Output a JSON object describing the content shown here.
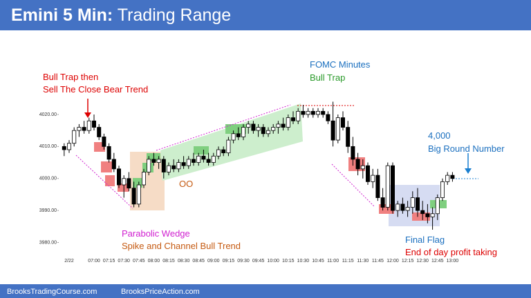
{
  "header": {
    "title_prefix": "Emini 5 Min:",
    "title": "Trading Range"
  },
  "footer": {
    "left": "BrooksTradingCourse.com",
    "right": "BrooksPriceAction.com"
  },
  "chart_data": {
    "type": "candlestick",
    "up_color": "#ffffff",
    "down_color": "#000000",
    "annotations": [
      "Bull Trap then",
      "Sell The Close Bear Trend",
      "FOMC Minutes",
      "Bull Trap",
      "4,000",
      "Big Round Number",
      "OO",
      "Parabolic Wedge",
      "Spike and Channel Bull Trend",
      "Final Flag",
      "End of day profit taking"
    ],
    "ylim": [
      3973,
      4045
    ],
    "yticks": [
      {
        "value": 3980,
        "label": "3980.00"
      },
      {
        "value": 3990,
        "label": "3990.00"
      },
      {
        "value": 4000,
        "label": "4000.00"
      },
      {
        "value": 4010,
        "label": "4010.00"
      },
      {
        "value": 4020,
        "label": "4020.00"
      }
    ],
    "categories": [
      null,
      "2/22",
      null,
      null,
      null,
      null,
      "07:00",
      null,
      null,
      "07:15",
      null,
      null,
      "07:30",
      null,
      null,
      "07:45",
      null,
      null,
      "08:00",
      null,
      null,
      "08:15",
      null,
      null,
      "08:30",
      null,
      null,
      "08:45",
      null,
      null,
      "09:00",
      null,
      null,
      "09:15",
      null,
      null,
      "09:30",
      null,
      null,
      "09:45",
      null,
      null,
      "10:00",
      null,
      null,
      "10:15",
      null,
      null,
      "10:30",
      null,
      null,
      "10:45",
      null,
      null,
      "11:00",
      null,
      null,
      "11:15",
      null,
      null,
      "11:30",
      null,
      null,
      "11:45",
      null,
      null,
      "12:00",
      null,
      null,
      "12:15",
      null,
      null,
      "12:30",
      null,
      null,
      "12:45",
      null,
      null,
      "13:00"
    ],
    "ohlc": [
      [
        4010,
        4011,
        4007,
        4009
      ],
      [
        4009,
        4012,
        4008,
        4011
      ],
      [
        4011,
        4016,
        4010,
        4015
      ],
      [
        4015,
        4017,
        4013,
        4016
      ],
      [
        4016,
        4018,
        4014,
        4015
      ],
      [
        4015,
        4019,
        4014,
        4018
      ],
      [
        4018,
        4020,
        4015,
        4016
      ],
      [
        4016,
        4017,
        4012,
        4013
      ],
      [
        4013,
        4014,
        4009,
        4010
      ],
      [
        4010,
        4011,
        4005,
        4006
      ],
      [
        4006,
        4008,
        4002,
        4003
      ],
      [
        4003,
        4004,
        3997,
        3998
      ],
      [
        3998,
        4001,
        3994,
        4000
      ],
      [
        4000,
        4002,
        3996,
        3997
      ],
      [
        3997,
        3999,
        3991,
        3992
      ],
      [
        3992,
        3999,
        3991,
        3998
      ],
      [
        3998,
        4003,
        3997,
        4002
      ],
      [
        4002,
        4007,
        4001,
        4006
      ],
      [
        4006,
        4008,
        4004,
        4005
      ],
      [
        4005,
        4007,
        4003,
        4006
      ],
      [
        4006,
        4007,
        4000,
        4002
      ],
      [
        4002,
        4005,
        4001,
        4004
      ],
      [
        4004,
        4006,
        4002,
        4003
      ],
      [
        4003,
        4006,
        4002,
        4005
      ],
      [
        4005,
        4007,
        4003,
        4004
      ],
      [
        4004,
        4007,
        4003,
        4006
      ],
      [
        4006,
        4008,
        4004,
        4005
      ],
      [
        4005,
        4008,
        4004,
        4007
      ],
      [
        4007,
        4009,
        4005,
        4006
      ],
      [
        4006,
        4008,
        4004,
        4005
      ],
      [
        4005,
        4008,
        4004,
        4007
      ],
      [
        4007,
        4010,
        4006,
        4009
      ],
      [
        4009,
        4010,
        4007,
        4008
      ],
      [
        4008,
        4013,
        4007,
        4012
      ],
      [
        4012,
        4015,
        4011,
        4014
      ],
      [
        4014,
        4016,
        4012,
        4013
      ],
      [
        4013,
        4017,
        4012,
        4016
      ],
      [
        4016,
        4018,
        4014,
        4017
      ],
      [
        4017,
        4018,
        4014,
        4015
      ],
      [
        4015,
        4017,
        4013,
        4016
      ],
      [
        4016,
        4017,
        4013,
        4014
      ],
      [
        4014,
        4016,
        4013,
        4015
      ],
      [
        4015,
        4017,
        4014,
        4016
      ],
      [
        4016,
        4018,
        4014,
        4017
      ],
      [
        4017,
        4019,
        4015,
        4016
      ],
      [
        4016,
        4020,
        4015,
        4019
      ],
      [
        4019,
        4021,
        4017,
        4018
      ],
      [
        4018,
        4022,
        4017,
        4021
      ],
      [
        4021,
        4023,
        4019,
        4020
      ],
      [
        4020,
        4022,
        4019,
        4021
      ],
      [
        4021,
        4022,
        4019,
        4020
      ],
      [
        4020,
        4022,
        4019,
        4021
      ],
      [
        4021,
        4022,
        4019,
        4020
      ],
      [
        4020,
        4021,
        4017,
        4018
      ],
      [
        4018,
        4024,
        4010,
        4012
      ],
      [
        4012,
        4020,
        4011,
        4019
      ],
      [
        4019,
        4021,
        4015,
        4016
      ],
      [
        4016,
        4018,
        4008,
        4010
      ],
      [
        4010,
        4013,
        4004,
        4006
      ],
      [
        4006,
        4008,
        4001,
        4003
      ],
      [
        4003,
        4006,
        4000,
        4004
      ],
      [
        4004,
        4005,
        3998,
        3999
      ],
      [
        3999,
        4003,
        3997,
        4001
      ],
      [
        4001,
        4003,
        3993,
        3994
      ],
      [
        3994,
        3997,
        3990,
        3991
      ],
      [
        3991,
        4005,
        3990,
        4004
      ],
      [
        4004,
        4005,
        3989,
        3990
      ],
      [
        3990,
        3993,
        3988,
        3992
      ],
      [
        3992,
        3994,
        3989,
        3990
      ],
      [
        3990,
        3993,
        3988,
        3991
      ],
      [
        3991,
        3996,
        3989,
        3994
      ],
      [
        3994,
        3997,
        3988,
        3990
      ],
      [
        3990,
        3993,
        3987,
        3989
      ],
      [
        3989,
        3992,
        3986,
        3988
      ],
      [
        3988,
        3991,
        3984,
        3989
      ],
      [
        3989,
        3995,
        3987,
        3994
      ],
      [
        3994,
        4000,
        3993,
        3999
      ],
      [
        3999,
        4002,
        3998,
        4001
      ],
      [
        4001,
        4002,
        3999,
        4000
      ]
    ]
  }
}
